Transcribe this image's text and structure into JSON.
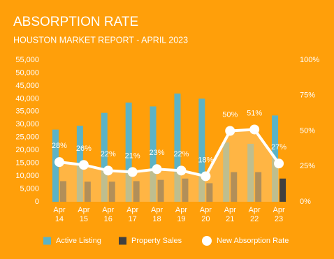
{
  "chart_data": {
    "type": "bar-line",
    "title": "ABSORPTION RATE",
    "subtitle": "HOUSTON MARKET REPORT - APRIL 2023",
    "categories": [
      "Apr 14",
      "Apr 15",
      "Apr 16",
      "Apr 17",
      "Apr 18",
      "Apr 19",
      "Apr 20",
      "Apr 21",
      "Apr 22",
      "Apr 23"
    ],
    "series": [
      {
        "name": "Active Listing",
        "type": "bar",
        "color": "#5cb3c6",
        "values": [
          28000,
          29500,
          34500,
          38500,
          37000,
          42000,
          40000,
          23000,
          22500,
          33500
        ]
      },
      {
        "name": "Property Sales",
        "type": "bar",
        "color": "#404040",
        "values": [
          8000,
          7800,
          7800,
          8000,
          8500,
          9000,
          7200,
          11500,
          11500,
          9000
        ]
      },
      {
        "name": "New Absorption Rate",
        "type": "line",
        "axis": "y2",
        "color": "#ffffff",
        "area_color": "#ffc46b",
        "values": [
          28,
          26,
          22,
          21,
          23,
          22,
          18,
          50,
          51,
          27
        ],
        "value_labels": [
          "28%",
          "26%",
          "22%",
          "21%",
          "23%",
          "22%",
          "18%",
          "50%",
          "51%",
          "27%"
        ]
      }
    ],
    "ylim": [
      0,
      55000
    ],
    "yticks": [
      0,
      {
        "value": 5000,
        "label": "5,000"
      },
      {
        "value": 10000,
        "label": "10,000"
      },
      {
        "value": 15000,
        "label": "15,000"
      },
      {
        "value": 20000,
        "label": "20,000"
      },
      {
        "value": 25000,
        "label": "25,000"
      },
      {
        "value": 30000,
        "label": "30,000"
      },
      {
        "value": 35000,
        "label": "35,000"
      },
      {
        "value": 40000,
        "label": "40,000"
      },
      {
        "value": 45000,
        "label": "45,000"
      },
      {
        "value": 50000,
        "label": "50,000"
      },
      {
        "value": 55000,
        "label": "55,000"
      }
    ],
    "y2lim": [
      0,
      100
    ],
    "y2ticks": [
      {
        "value": 0,
        "label": "0%"
      },
      {
        "value": 25,
        "label": "25%"
      },
      {
        "value": 50,
        "label": "50%"
      },
      {
        "value": 75,
        "label": "75%"
      },
      {
        "value": 100,
        "label": "100%"
      }
    ],
    "grid": false
  }
}
